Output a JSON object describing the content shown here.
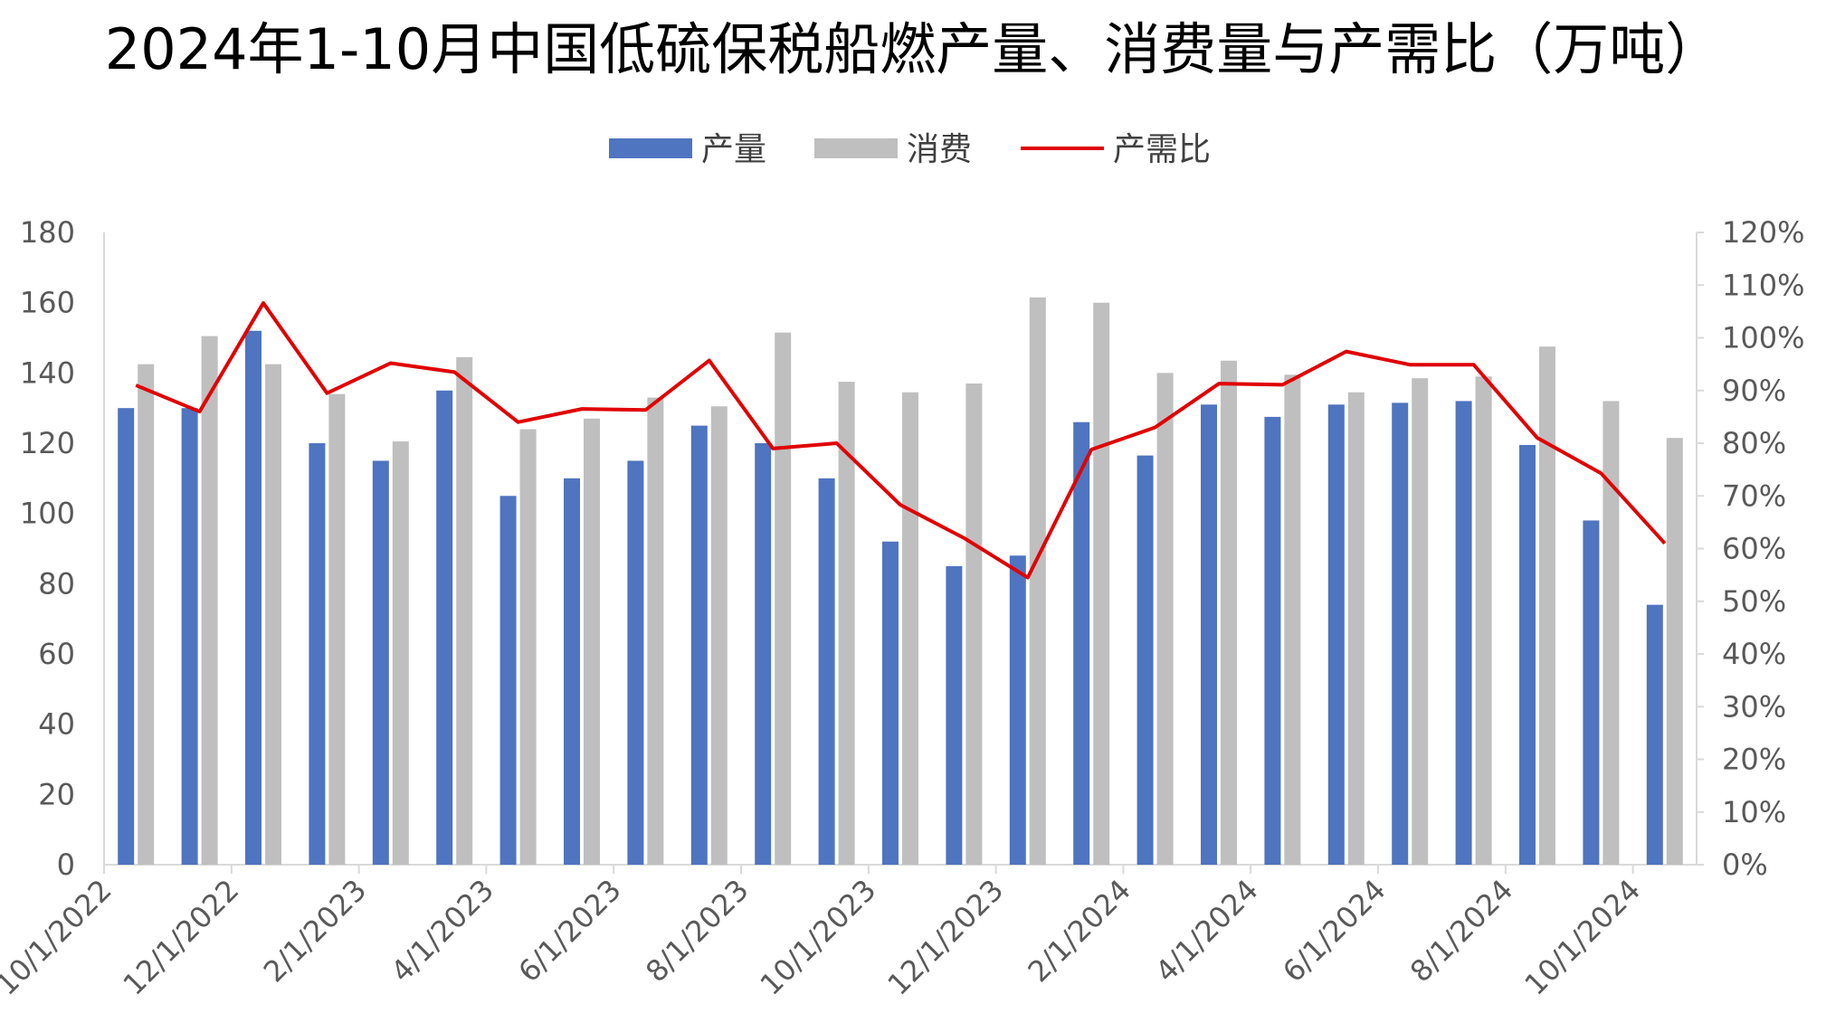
{
  "chart_data": {
    "type": "bar",
    "title": "2024年1-10月中国低硫保税船燃产量、消费量与产需比（万吨）",
    "x": [
      "10/1/2022",
      "11/1/2022",
      "12/1/2022",
      "1/1/2023",
      "2/1/2023",
      "3/1/2023",
      "4/1/2023",
      "5/1/2023",
      "6/1/2023",
      "7/1/2023",
      "8/1/2023",
      "9/1/2023",
      "10/1/2023",
      "11/1/2023",
      "12/1/2023",
      "1/1/2024",
      "2/1/2024",
      "3/1/2024",
      "4/1/2024",
      "5/1/2024",
      "6/1/2024",
      "7/1/2024",
      "8/1/2024",
      "9/1/2024",
      "10/1/2024"
    ],
    "x_tick_labels": [
      "10/1/2022",
      "12/1/2022",
      "2/1/2023",
      "4/1/2023",
      "6/1/2023",
      "8/1/2023",
      "10/1/2023",
      "12/1/2023",
      "2/1/2024",
      "4/1/2024",
      "6/1/2024",
      "8/1/2024",
      "10/1/2024"
    ],
    "series": [
      {
        "name": "产量",
        "type": "bar",
        "axis": "left",
        "color": "#4f74c0",
        "values": [
          130,
          130,
          152,
          120,
          115,
          135,
          105,
          110,
          115,
          125,
          120,
          110,
          92,
          85,
          88,
          126,
          116.5,
          131,
          127.5,
          131,
          131.5,
          132,
          119.5,
          98,
          74
        ]
      },
      {
        "name": "消费",
        "type": "bar",
        "axis": "left",
        "color": "#bfbfbf",
        "values": [
          142.5,
          150.5,
          142.5,
          134,
          120.5,
          144.5,
          124,
          127,
          133,
          130.5,
          151.5,
          137.5,
          134.5,
          137,
          161.5,
          160,
          140,
          143.5,
          139.5,
          134.5,
          138.5,
          139,
          147.5,
          132,
          121.5
        ]
      },
      {
        "name": "产需比",
        "type": "line",
        "axis": "right",
        "color": "#e00000",
        "values": [
          0.91,
          0.86,
          1.066,
          0.895,
          0.952,
          0.935,
          0.84,
          0.865,
          0.863,
          0.957,
          0.79,
          0.8,
          0.683,
          0.62,
          0.545,
          0.788,
          0.83,
          0.913,
          0.911,
          0.974,
          0.949,
          0.949,
          0.81,
          0.743,
          0.61
        ]
      }
    ],
    "y_left": {
      "ylim": [
        0,
        180
      ],
      "ticks": [
        "0",
        "20",
        "40",
        "60",
        "80",
        "100",
        "120",
        "140",
        "160",
        "180"
      ],
      "tick_values": [
        0,
        20,
        40,
        60,
        80,
        100,
        120,
        140,
        160,
        180
      ]
    },
    "y_right": {
      "ylim": [
        0,
        1.2
      ],
      "ticks": [
        "0%",
        "10%",
        "20%",
        "30%",
        "40%",
        "50%",
        "60%",
        "70%",
        "80%",
        "90%",
        "100%",
        "110%",
        "120%"
      ],
      "tick_values": [
        0,
        0.1,
        0.2,
        0.3,
        0.4,
        0.5,
        0.6,
        0.7,
        0.8,
        0.9,
        1.0,
        1.1,
        1.2
      ]
    },
    "legend_position": "top",
    "grid": false
  }
}
